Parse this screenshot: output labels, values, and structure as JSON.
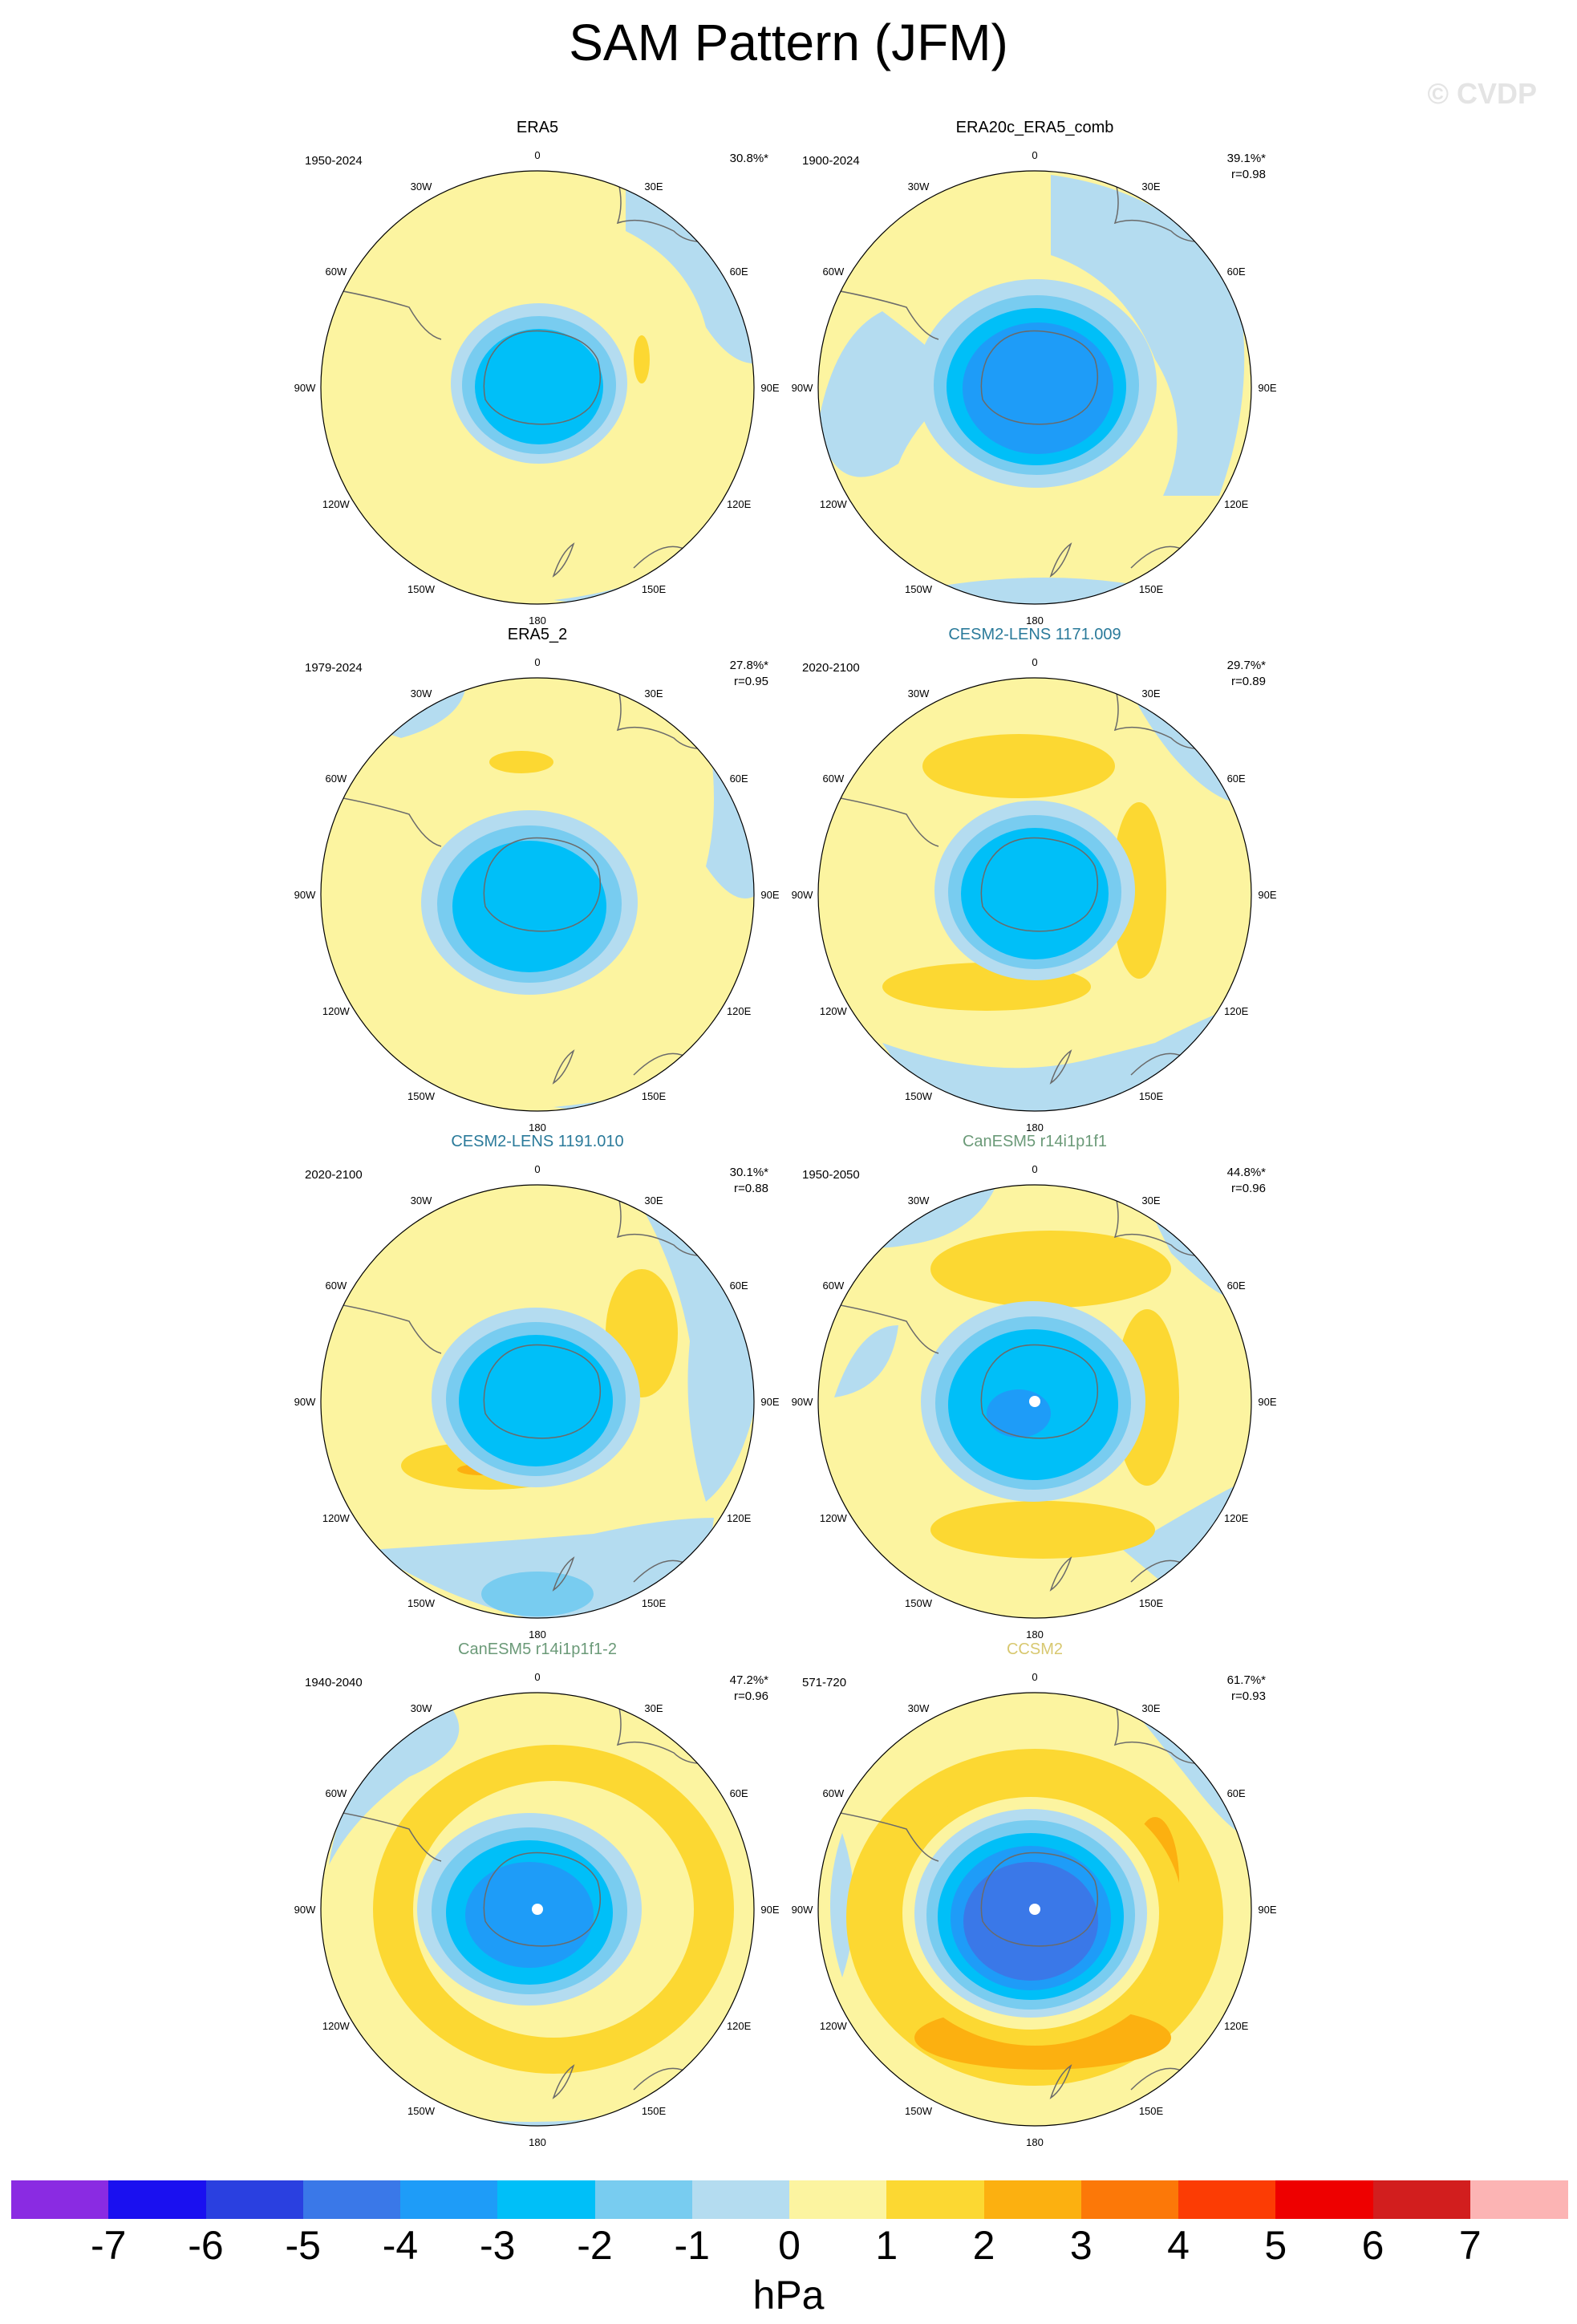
{
  "title": "SAM Pattern (JFM)",
  "watermark": "© CVDP",
  "units": "hPa",
  "map_labels": {
    "lon": [
      "0",
      "30E",
      "60E",
      "90E",
      "120E",
      "150E",
      "180",
      "150W",
      "120W",
      "90W",
      "60W",
      "30W"
    ]
  },
  "panels": [
    {
      "name": "ERA5",
      "name_color": "#000000",
      "period": "1950-2024",
      "pct": "30.8%*",
      "r": "",
      "pattern": "era5"
    },
    {
      "name": "ERA20c_ERA5_comb",
      "name_color": "#000000",
      "period": "1900-2024",
      "pct": "39.1%*",
      "r": "r=0.98",
      "pattern": "era20c"
    },
    {
      "name": "ERA5_2",
      "name_color": "#000000",
      "period": "1979-2024",
      "pct": "27.8%*",
      "r": "r=0.95",
      "pattern": "era5b"
    },
    {
      "name": "CESM2-LENS 1171.009",
      "name_color": "#2a7a9a",
      "period": "2020-2100",
      "pct": "29.7%*",
      "r": "r=0.89",
      "pattern": "cesm1"
    },
    {
      "name": "CESM2-LENS 1191.010",
      "name_color": "#2a7a9a",
      "period": "2020-2100",
      "pct": "30.1%*",
      "r": "r=0.88",
      "pattern": "cesm2"
    },
    {
      "name": "CanESM5 r14i1p1f1",
      "name_color": "#6b9a78",
      "period": "1950-2050",
      "pct": "44.8%*",
      "r": "r=0.96",
      "pattern": "can1"
    },
    {
      "name": "CanESM5 r14i1p1f1-2",
      "name_color": "#6b9a78",
      "period": "1940-2040",
      "pct": "47.2%*",
      "r": "r=0.96",
      "pattern": "can2"
    },
    {
      "name": "CCSM2",
      "name_color": "#d8c870",
      "period": "571-720",
      "pct": "61.7%*",
      "r": "r=0.93",
      "pattern": "ccsm2"
    }
  ],
  "colorbar": {
    "colors": [
      "#8a2be2",
      "#1a10f0",
      "#2a40e0",
      "#3a78e8",
      "#1e9cf8",
      "#00bff8",
      "#78ccf0",
      "#b4dcf0",
      "#fcf4a0",
      "#fcd832",
      "#fcb010",
      "#fc7808",
      "#fc3c04",
      "#ee0000",
      "#d21e1e",
      "#fcb4b4"
    ],
    "ticks": [
      "-7",
      "-6",
      "-5",
      "-4",
      "-3",
      "-2",
      "-1",
      "0",
      "1",
      "2",
      "3",
      "4",
      "5",
      "6",
      "7"
    ]
  }
}
